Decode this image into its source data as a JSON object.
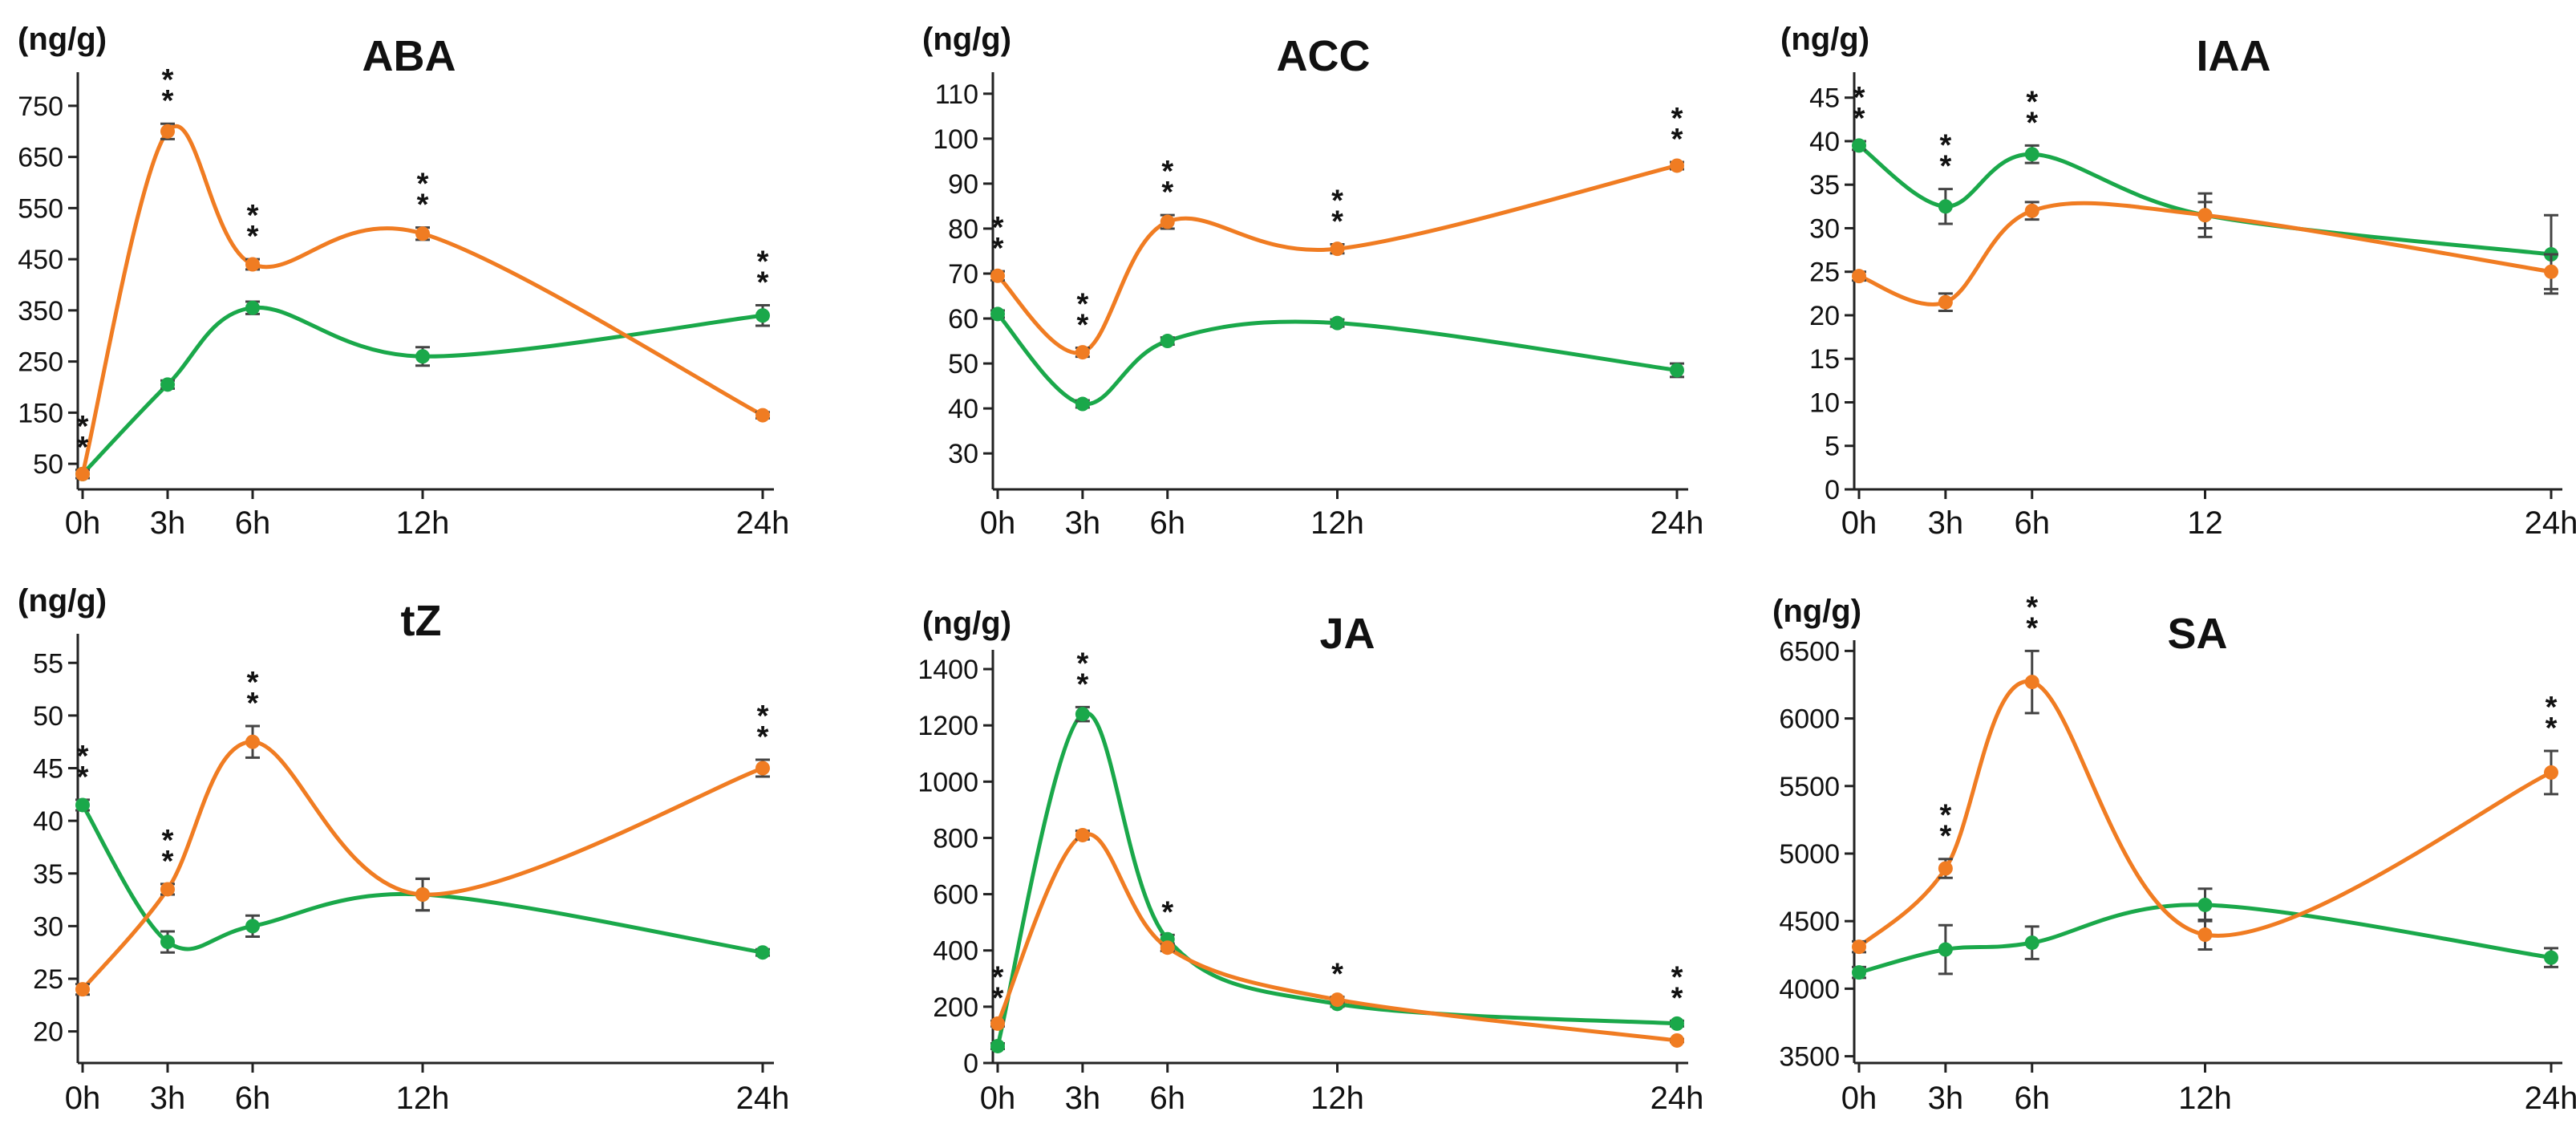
{
  "colors": {
    "series_a": "#1aa84a",
    "series_b": "#f07c22"
  },
  "chart_data": [
    {
      "type": "line",
      "title": "ABA",
      "ylabel": "(ng/g)",
      "x": [
        0,
        3,
        6,
        12,
        24
      ],
      "x_tick_labels": [
        "0h",
        "3h",
        "6h",
        "12h",
        "24h"
      ],
      "y_ticks": [
        50,
        150,
        250,
        350,
        450,
        550,
        650,
        750
      ],
      "ylim": [
        0,
        800
      ],
      "series": [
        {
          "name": "green",
          "values": [
            30,
            205,
            355,
            260,
            340
          ],
          "errors": [
            8,
            8,
            12,
            18,
            20
          ]
        },
        {
          "name": "orange",
          "values": [
            30,
            700,
            440,
            500,
            145
          ],
          "errors": [
            8,
            15,
            10,
            12,
            6
          ]
        }
      ],
      "significance": [
        "**",
        "**",
        "**",
        "**",
        "**"
      ]
    },
    {
      "type": "line",
      "title": "ACC",
      "ylabel": "(ng/g)",
      "x": [
        0,
        3,
        6,
        12,
        24
      ],
      "x_tick_labels": [
        "0h",
        "3h",
        "6h",
        "12h",
        "24h"
      ],
      "y_ticks": [
        30,
        40,
        50,
        60,
        70,
        80,
        90,
        100,
        110
      ],
      "ylim": [
        22,
        113
      ],
      "series": [
        {
          "name": "green",
          "values": [
            61,
            41,
            55,
            59,
            48.5
          ],
          "errors": [
            0.8,
            0.8,
            0.8,
            0.8,
            1.5
          ]
        },
        {
          "name": "orange",
          "values": [
            69.5,
            52.5,
            81.5,
            75.5,
            94
          ],
          "errors": [
            1,
            1,
            1.5,
            1,
            0.8
          ]
        }
      ],
      "significance": [
        "**",
        "**",
        "**",
        "**",
        "**"
      ]
    },
    {
      "type": "line",
      "title": "IAA",
      "ylabel": "(ng/g)",
      "x": [
        0,
        3,
        6,
        12,
        24
      ],
      "x_tick_labels": [
        "0h",
        "3h",
        "6h",
        "12",
        "24h"
      ],
      "y_ticks": [
        0,
        5,
        10,
        15,
        20,
        25,
        30,
        35,
        40,
        45
      ],
      "ylim": [
        0,
        47
      ],
      "series": [
        {
          "name": "green",
          "values": [
            39.5,
            32.5,
            38.5,
            31.5,
            27
          ],
          "errors": [
            0.5,
            2,
            1,
            2.5,
            4.5
          ]
        },
        {
          "name": "orange",
          "values": [
            24.5,
            21.5,
            32,
            31.5,
            25
          ],
          "errors": [
            0.5,
            1,
            1,
            1.5,
            2
          ]
        }
      ],
      "significance": [
        "**",
        "**",
        "**",
        "",
        ""
      ]
    },
    {
      "type": "line",
      "title": "tZ",
      "ylabel": "(ng/g)",
      "x": [
        0,
        3,
        6,
        12,
        24
      ],
      "x_tick_labels": [
        "0h",
        "3h",
        "6h",
        "12h",
        "24h"
      ],
      "y_ticks": [
        20,
        25,
        30,
        35,
        40,
        45,
        50,
        55
      ],
      "ylim": [
        17,
        57
      ],
      "series": [
        {
          "name": "green",
          "values": [
            41.5,
            28.5,
            30,
            33,
            27.5
          ],
          "errors": [
            0.5,
            1,
            1,
            1.5,
            0.3
          ]
        },
        {
          "name": "orange",
          "values": [
            24,
            33.5,
            47.5,
            33,
            45
          ],
          "errors": [
            0.5,
            0.5,
            1.5,
            1.5,
            0.8
          ]
        }
      ],
      "significance": [
        "**",
        "**",
        "**",
        "",
        "**"
      ]
    },
    {
      "type": "line",
      "title": "JA",
      "ylabel": "(ng/g)",
      "x": [
        0,
        3,
        6,
        12,
        24
      ],
      "x_tick_labels": [
        "0h",
        "3h",
        "6h",
        "12h",
        "24h"
      ],
      "y_ticks": [
        0,
        200,
        400,
        600,
        800,
        1000,
        1200,
        1400
      ],
      "ylim": [
        0,
        1440
      ],
      "series": [
        {
          "name": "green",
          "values": [
            60,
            1240,
            440,
            210,
            140
          ],
          "errors": [
            10,
            25,
            15,
            10,
            10
          ]
        },
        {
          "name": "orange",
          "values": [
            140,
            810,
            410,
            225,
            80
          ],
          "errors": [
            10,
            15,
            12,
            10,
            5
          ]
        }
      ],
      "significance": [
        "**",
        "**",
        "*",
        "*",
        "**"
      ]
    },
    {
      "type": "line",
      "title": "SA",
      "ylabel": "(ng/g)",
      "x": [
        0,
        3,
        6,
        12,
        24
      ],
      "x_tick_labels": [
        "0h",
        "3h",
        "6h",
        "12h",
        "24h"
      ],
      "y_ticks": [
        3500,
        4000,
        4500,
        5000,
        5500,
        6000,
        6500
      ],
      "ylim": [
        3450,
        6520
      ],
      "series": [
        {
          "name": "green",
          "values": [
            4120,
            4290,
            4340,
            4620,
            4230
          ],
          "errors": [
            40,
            180,
            120,
            120,
            70
          ]
        },
        {
          "name": "orange",
          "values": [
            4310,
            4890,
            6270,
            4400,
            5600
          ],
          "errors": [
            40,
            70,
            230,
            110,
            160
          ]
        }
      ],
      "significance": [
        "",
        "**",
        "**",
        "",
        "**"
      ]
    }
  ]
}
